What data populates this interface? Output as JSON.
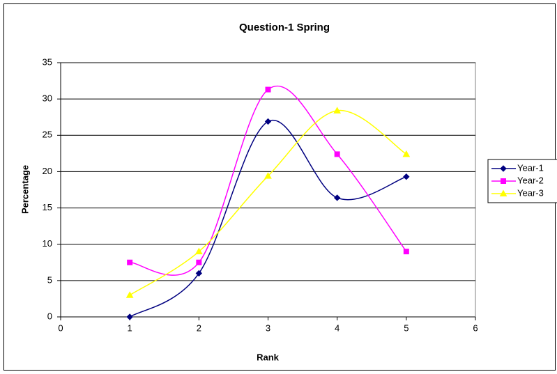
{
  "chart_data": {
    "type": "line",
    "title": "Question-1 Spring",
    "x_label": "Rank",
    "y_label": "Percentage",
    "x": [
      1,
      2,
      3,
      4,
      5
    ],
    "series": [
      {
        "name": "Year-1",
        "color": "#000080",
        "marker": "diamond",
        "values": [
          0,
          6,
          26.9,
          16.4,
          19.3
        ]
      },
      {
        "name": "Year-2",
        "color": "#ff00ff",
        "marker": "square",
        "values": [
          7.5,
          7.5,
          31.3,
          22.4,
          9.0
        ]
      },
      {
        "name": "Year-3",
        "color": "#ffff00",
        "marker": "triangle",
        "values": [
          3.0,
          9.0,
          19.4,
          28.4,
          22.4
        ]
      }
    ],
    "xlim": [
      0,
      6
    ],
    "xticks": [
      0,
      1,
      2,
      3,
      4,
      5,
      6
    ],
    "ylim": [
      0,
      35
    ],
    "yticks": [
      0,
      5,
      10,
      15,
      20,
      25,
      30,
      35
    ],
    "grid": true,
    "smooth": true,
    "legend": "right"
  }
}
